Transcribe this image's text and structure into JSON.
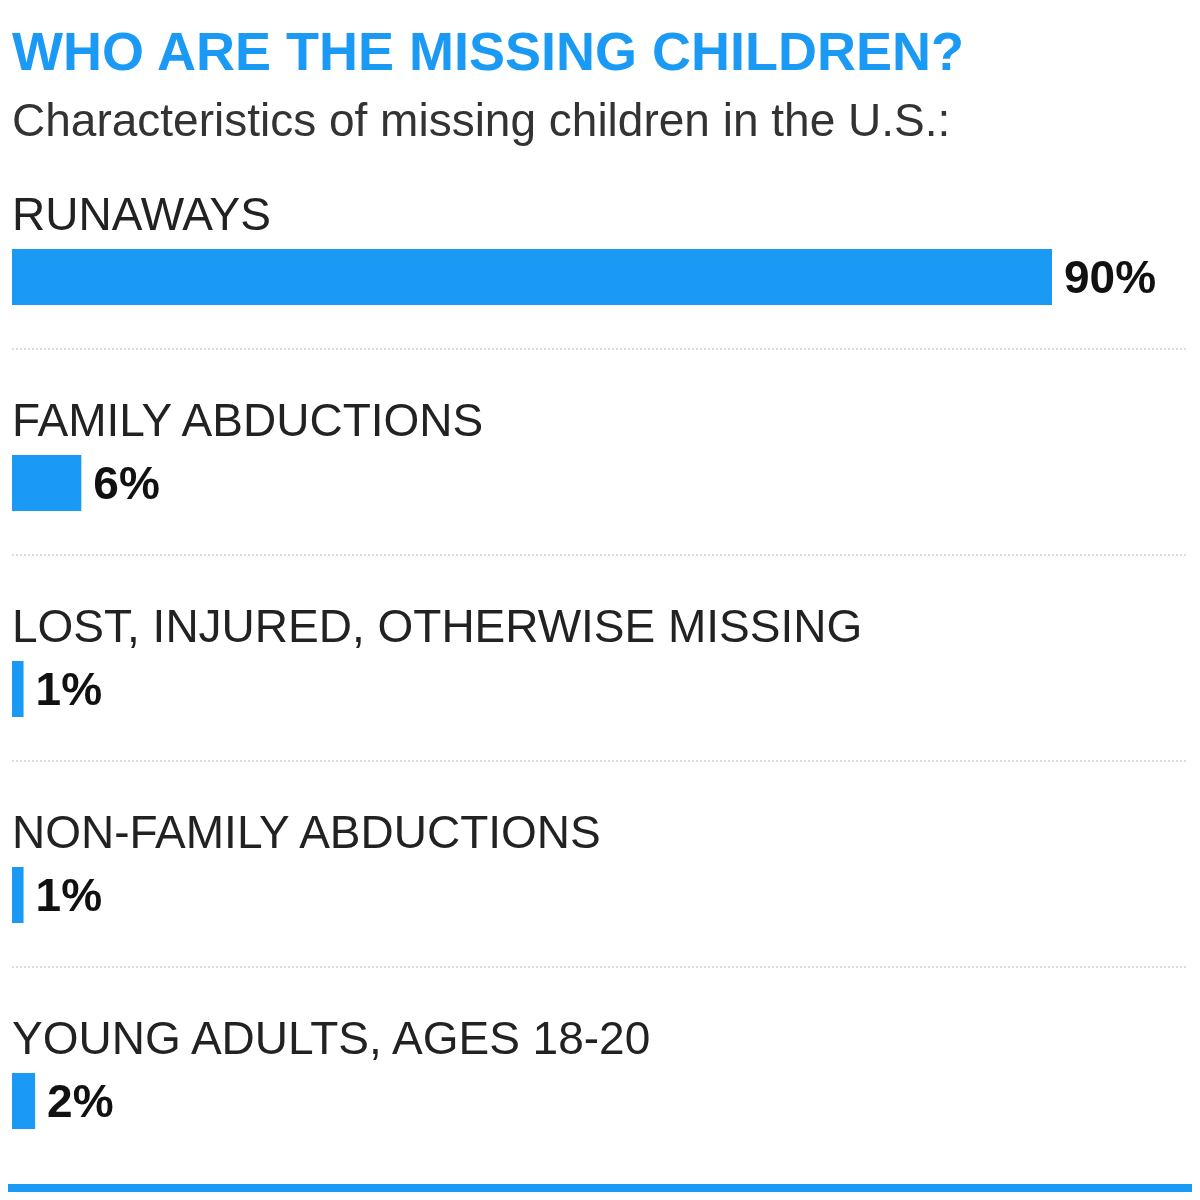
{
  "chart_data": {
    "type": "bar",
    "orientation": "horizontal",
    "title": "WHO ARE THE MISSING CHILDREN?",
    "subtitle": "Characteristics of missing children in the U.S.:",
    "categories": [
      "RUNAWAYS",
      "FAMILY ABDUCTIONS",
      "LOST, INJURED, OTHERWISE MISSING",
      "NON-FAMILY ABDUCTIONS",
      "YOUNG ADULTS, AGES 18-20"
    ],
    "values": [
      90,
      6,
      1,
      1,
      2
    ],
    "value_labels": [
      "90%",
      "6%",
      "1%",
      "1%",
      "2%"
    ],
    "color": "#1a9af5",
    "xlim": [
      0,
      90
    ]
  }
}
